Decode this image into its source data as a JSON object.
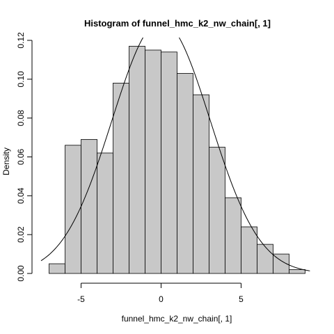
{
  "chart_data": {
    "type": "bar",
    "title": "Histogram of funnel_hmc_k2_nw_chain[, 1]",
    "xlabel": "funnel_hmc_k2_nw_chain[, 1]",
    "ylabel": "Density",
    "xlim": [
      -7.5,
      9.5
    ],
    "ylim": [
      0,
      0.12
    ],
    "x_ticks": [
      -5,
      0,
      5
    ],
    "x_tick_labels": [
      "-5",
      "0",
      "5"
    ],
    "y_ticks": [
      0.0,
      0.02,
      0.04,
      0.06,
      0.08,
      0.1,
      0.12
    ],
    "y_tick_labels": [
      "0.00",
      "0.02",
      "0.04",
      "0.06",
      "0.08",
      "0.10",
      "0.12"
    ],
    "bin_width": 1,
    "bins": [
      {
        "x0": -7,
        "x1": -6,
        "density": 0.005
      },
      {
        "x0": -6,
        "x1": -5,
        "density": 0.066
      },
      {
        "x0": -5,
        "x1": -4,
        "density": 0.069
      },
      {
        "x0": -4,
        "x1": -3,
        "density": 0.062
      },
      {
        "x0": -3,
        "x1": -2,
        "density": 0.098
      },
      {
        "x0": -2,
        "x1": -1,
        "density": 0.117
      },
      {
        "x0": -1,
        "x1": 0,
        "density": 0.115
      },
      {
        "x0": 0,
        "x1": 1,
        "density": 0.114
      },
      {
        "x0": 1,
        "x1": 2,
        "density": 0.103
      },
      {
        "x0": 2,
        "x1": 3,
        "density": 0.092
      },
      {
        "x0": 3,
        "x1": 4,
        "density": 0.065
      },
      {
        "x0": 4,
        "x1": 5,
        "density": 0.039
      },
      {
        "x0": 5,
        "x1": 6,
        "density": 0.024
      },
      {
        "x0": 6,
        "x1": 7,
        "density": 0.015
      },
      {
        "x0": 7,
        "x1": 8,
        "density": 0.01
      },
      {
        "x0": 8,
        "x1": 9,
        "density": 0.002
      }
    ],
    "overlay_curve": {
      "type": "normal-density",
      "mean": 0,
      "sd": 3.07
    },
    "colors": {
      "bar_fill": "#c8c8c8",
      "bar_stroke": "#000000",
      "curve": "#000000"
    },
    "grid": false,
    "legend": "none"
  }
}
